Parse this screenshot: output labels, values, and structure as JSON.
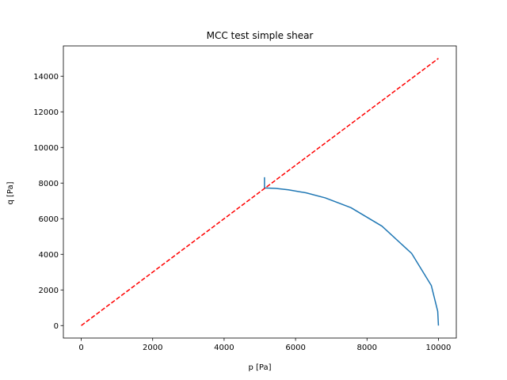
{
  "chart_data": {
    "type": "line",
    "title": "MCC test simple shear",
    "xlabel": "p [Pa]",
    "ylabel": "q [Pa]",
    "xlim": [
      -500,
      10500
    ],
    "ylim": [
      -700,
      15700
    ],
    "xticks": [
      0,
      2000,
      4000,
      6000,
      8000,
      10000
    ],
    "yticks": [
      0,
      2000,
      4000,
      6000,
      8000,
      10000,
      12000,
      14000
    ],
    "grid": false,
    "colors": {
      "stress_path": "#1f77b4",
      "reference_line": "#ff0000"
    },
    "series": [
      {
        "style": "solid",
        "x": [
          10000,
          9980,
          9800,
          9250,
          8420,
          7550,
          6830,
          6300,
          5800,
          5450,
          5200,
          5130,
          5130,
          5130
        ],
        "y": [
          0,
          800,
          2250,
          4050,
          5580,
          6620,
          7170,
          7450,
          7620,
          7700,
          7720,
          7730,
          7900,
          8330
        ]
      },
      {
        "style": "dashed",
        "x": [
          0,
          10000
        ],
        "y": [
          0,
          15000
        ]
      }
    ]
  }
}
